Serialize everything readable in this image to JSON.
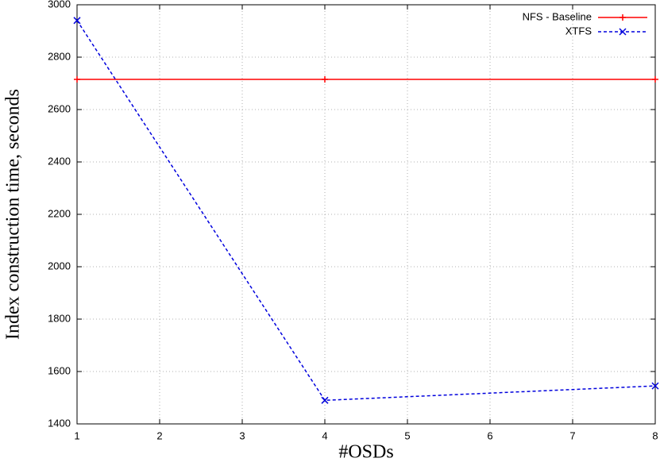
{
  "chart_data": {
    "type": "line",
    "x_label": "#OSDs",
    "y_label": "Index construction time, seconds",
    "x": [
      1,
      4,
      8
    ],
    "series": [
      {
        "name": "NFS - Baseline",
        "color": "#ff0000",
        "dash": false,
        "marker": "plus",
        "values": [
          2715,
          2715,
          2715
        ]
      },
      {
        "name": "XTFS",
        "color": "#0000dd",
        "dash": true,
        "marker": "cross",
        "values": [
          2940,
          1490,
          1545
        ]
      }
    ],
    "xlim": [
      1,
      8
    ],
    "xticks": [
      1,
      2,
      3,
      4,
      5,
      6,
      7,
      8
    ],
    "ylim": [
      1400,
      3000
    ],
    "yticks": [
      1400,
      1600,
      1800,
      2000,
      2200,
      2400,
      2600,
      2800,
      3000
    ],
    "grid": true,
    "legend": "top-right"
  }
}
